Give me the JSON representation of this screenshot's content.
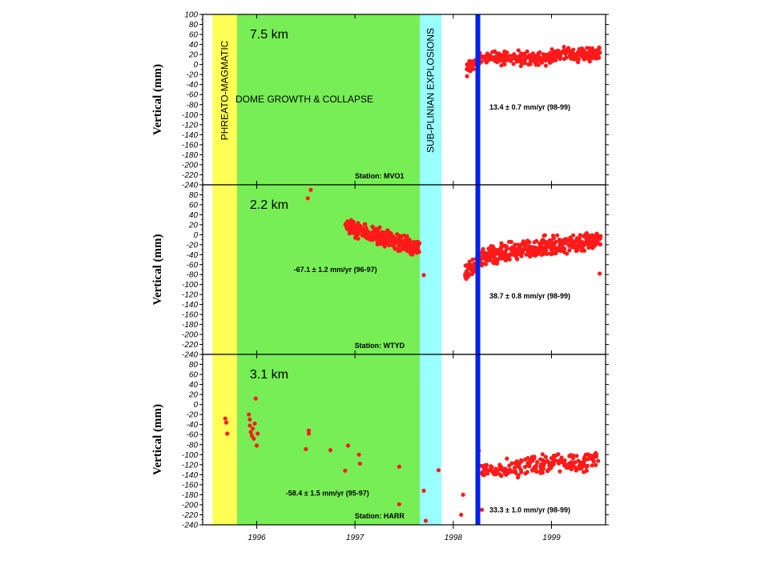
{
  "chart_data": {
    "type": "scatter",
    "x_axis": {
      "range": [
        1995.45,
        1999.55
      ],
      "ticks": [
        {
          "value": 1996,
          "label": "1996"
        },
        {
          "value": 1997,
          "label": "1997"
        },
        {
          "value": 1998,
          "label": "1998"
        },
        {
          "value": 1999,
          "label": "1999"
        }
      ]
    },
    "phases": [
      {
        "name": "PHREATO-MAGMATIC",
        "start": 1995.55,
        "end": 1995.8,
        "color": "#ffff55",
        "vertical_text": true
      },
      {
        "name": "DOME GROWTH & COLLAPSE",
        "start": 1995.8,
        "end": 1997.66,
        "color": "#77ee55",
        "vertical_text": false
      },
      {
        "name": "SUB-PLINIAN EXPLOSIONS",
        "start": 1997.66,
        "end": 1997.88,
        "color": "#99ffff",
        "vertical_text": true
      }
    ],
    "event_line": {
      "x": 1998.25,
      "color": "#0022ee"
    },
    "point_color": "#ff1a1a",
    "panels": [
      {
        "distance": "7.5 km",
        "station": "Station: MVO1",
        "ylabel": "Vertical (mm)",
        "ylim": [
          -240,
          100
        ],
        "yticks": [
          100,
          80,
          60,
          40,
          20,
          0,
          -20,
          -40,
          -60,
          -80,
          -100,
          -120,
          -140,
          -160,
          -180,
          -200,
          -220,
          -240
        ],
        "rates": [
          {
            "text": "13.4 ± 0.7 mm/yr (98-99)",
            "x": 1998.78,
            "y": -90
          }
        ],
        "segments": [
          {
            "start": 1998.12,
            "end": 1998.33,
            "y_start": -12,
            "y_end": 18,
            "spread": 11,
            "count": 45
          },
          {
            "start": 1998.33,
            "end": 1999.0,
            "y_start": 14,
            "y_end": 12,
            "spread": 11,
            "count": 170
          },
          {
            "start": 1999.0,
            "end": 1999.5,
            "y_start": 20,
            "y_end": 22,
            "spread": 11,
            "count": 140
          }
        ],
        "points": []
      },
      {
        "distance": "2.2 km",
        "station": "Station: WTYD",
        "ylabel": "Vertical (mm)",
        "ylim": [
          -240,
          100
        ],
        "yticks": [
          80,
          60,
          40,
          20,
          0,
          -20,
          -40,
          -60,
          -80,
          -100,
          -120,
          -140,
          -160,
          -180,
          -200,
          -220,
          -240
        ],
        "rates": [
          {
            "text": "-67.1 ± 1.2 mm/yr (96-97)",
            "x": 1996.8,
            "y": -75
          },
          {
            "text": "38.7 ± 0.8 mm/yr (98-99)",
            "x": 1998.78,
            "y": -128
          }
        ],
        "segments": [
          {
            "start": 1996.9,
            "end": 1997.66,
            "y_start": 16,
            "y_end": -28,
            "spread": 13,
            "count": 320
          },
          {
            "start": 1998.12,
            "end": 1998.3,
            "y_start": -78,
            "y_end": -52,
            "spread": 15,
            "count": 55
          },
          {
            "start": 1998.3,
            "end": 1999.5,
            "y_start": -42,
            "y_end": -10,
            "spread": 16,
            "count": 380
          }
        ],
        "points": [
          {
            "x": 1996.55,
            "y": 90
          },
          {
            "x": 1996.52,
            "y": 73
          },
          {
            "x": 1997.7,
            "y": -81
          },
          {
            "x": 1999.49,
            "y": -78
          }
        ]
      },
      {
        "distance": "3.1 km",
        "station": "Station: HARR",
        "ylabel": "Vertical (mm)",
        "ylim": [
          -240,
          100
        ],
        "yticks": [
          80,
          60,
          40,
          20,
          0,
          -20,
          -40,
          -60,
          -80,
          -100,
          -120,
          -140,
          -160,
          -180,
          -200,
          -220,
          -240
        ],
        "rates": [
          {
            "text": "-58.4 ± 1.5 mm/yr (95-97)",
            "x": 1996.72,
            "y": -182
          },
          {
            "text": "33.3 ± 1.0 mm/yr (98-99)",
            "x": 1998.78,
            "y": -215
          }
        ],
        "segments": [
          {
            "start": 1998.27,
            "end": 1999.5,
            "y_start": -135,
            "y_end": -108,
            "spread": 17,
            "count": 200
          }
        ],
        "points": [
          {
            "x": 1995.68,
            "y": -28
          },
          {
            "x": 1995.69,
            "y": -36
          },
          {
            "x": 1995.7,
            "y": -58
          },
          {
            "x": 1995.92,
            "y": -20
          },
          {
            "x": 1995.93,
            "y": -30
          },
          {
            "x": 1995.93,
            "y": -42
          },
          {
            "x": 1995.94,
            "y": -55
          },
          {
            "x": 1995.95,
            "y": -62
          },
          {
            "x": 1995.96,
            "y": -48
          },
          {
            "x": 1995.97,
            "y": -68
          },
          {
            "x": 1995.98,
            "y": -38
          },
          {
            "x": 1995.99,
            "y": 12
          },
          {
            "x": 1996.0,
            "y": -82
          },
          {
            "x": 1996.01,
            "y": -58
          },
          {
            "x": 1996.53,
            "y": -52
          },
          {
            "x": 1996.53,
            "y": -58
          },
          {
            "x": 1996.5,
            "y": -89
          },
          {
            "x": 1996.75,
            "y": -91
          },
          {
            "x": 1996.9,
            "y": -132
          },
          {
            "x": 1996.93,
            "y": -82
          },
          {
            "x": 1997.04,
            "y": -100
          },
          {
            "x": 1997.05,
            "y": -118
          },
          {
            "x": 1997.45,
            "y": -124
          },
          {
            "x": 1997.45,
            "y": -199
          },
          {
            "x": 1997.7,
            "y": -172
          },
          {
            "x": 1997.72,
            "y": -232
          },
          {
            "x": 1997.85,
            "y": -131
          },
          {
            "x": 1998.08,
            "y": -220
          },
          {
            "x": 1998.1,
            "y": -180
          },
          {
            "x": 1998.26,
            "y": -92
          },
          {
            "x": 1998.27,
            "y": -122
          },
          {
            "x": 1998.29,
            "y": -210
          },
          {
            "x": 1998.3,
            "y": -138
          }
        ]
      }
    ]
  }
}
